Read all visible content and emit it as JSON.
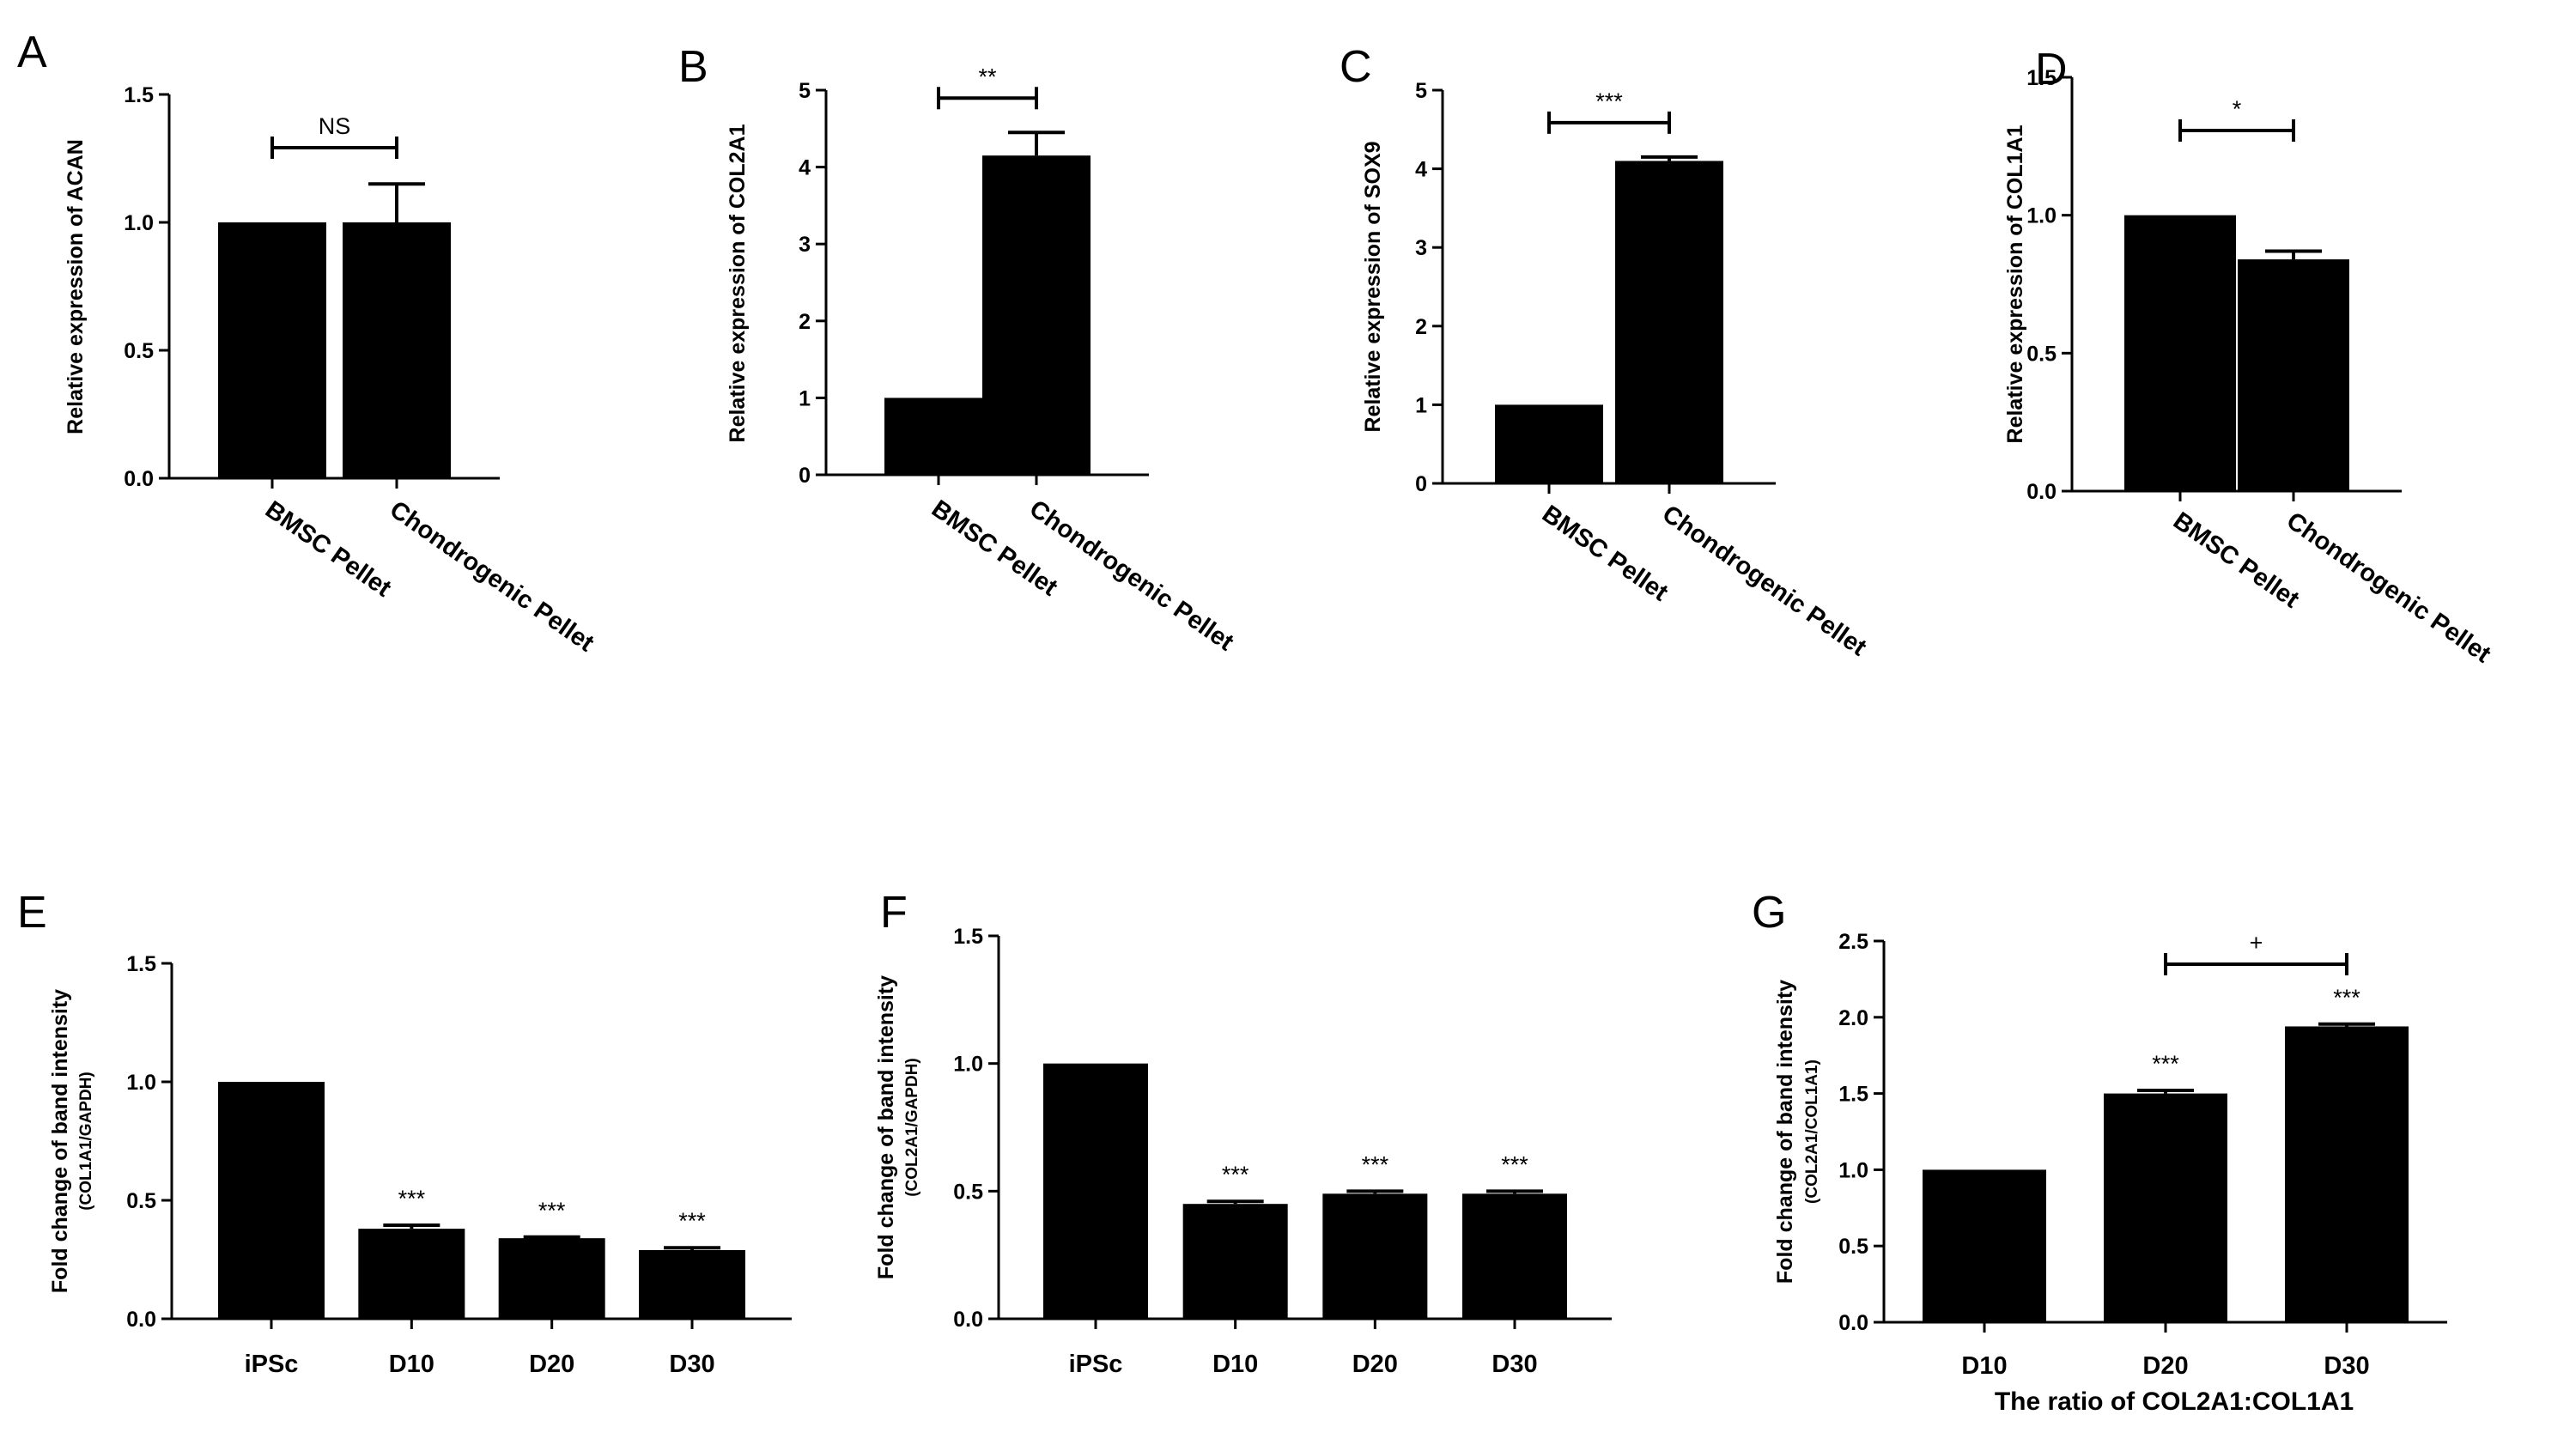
{
  "chart_data": [
    {
      "panel": "A",
      "type": "bar",
      "categories": [
        "BMSC Pellet",
        "Chondrogenic Pellet"
      ],
      "values": [
        1.0,
        1.0
      ],
      "errors": [
        0,
        0.15
      ],
      "ylabel": "Relative expression of ACAN",
      "ylabel2": "",
      "xlabel": "",
      "ylim": [
        0,
        1.5
      ],
      "yticks": [
        "0.0",
        "0.5",
        "1.0",
        "1.5"
      ],
      "bracket": {
        "from": 0,
        "to": 1,
        "label": "NS"
      },
      "stars": [
        "",
        ""
      ],
      "rotated_labels": true,
      "grid": false
    },
    {
      "panel": "B",
      "type": "bar",
      "categories": [
        "BMSC Pellet",
        "Chondrogenic Pellet"
      ],
      "values": [
        1.0,
        4.15
      ],
      "errors": [
        0,
        0.3
      ],
      "ylabel": "Relative expression of COL2A1",
      "ylabel2": "",
      "xlabel": "",
      "ylim": [
        0,
        5
      ],
      "yticks": [
        "0",
        "1",
        "2",
        "3",
        "4",
        "5"
      ],
      "bracket": {
        "from": 0,
        "to": 1,
        "label": "**"
      },
      "stars": [
        "",
        ""
      ],
      "rotated_labels": true,
      "grid": false
    },
    {
      "panel": "C",
      "type": "bar",
      "categories": [
        "BMSC Pellet",
        "Chondrogenic Pellet"
      ],
      "values": [
        1.0,
        4.1
      ],
      "errors": [
        0,
        0.05
      ],
      "ylabel": "Relative expression of SOX9",
      "ylabel2": "",
      "xlabel": "",
      "ylim": [
        0,
        5
      ],
      "yticks": [
        "0",
        "1",
        "2",
        "3",
        "4",
        "5"
      ],
      "bracket": {
        "from": 0,
        "to": 1,
        "label": "***"
      },
      "stars": [
        "",
        ""
      ],
      "rotated_labels": true,
      "grid": false
    },
    {
      "panel": "D",
      "type": "bar",
      "categories": [
        "BMSC Pellet",
        "Chondrogenic Pellet"
      ],
      "values": [
        1.0,
        0.84
      ],
      "errors": [
        0,
        0.03
      ],
      "ylabel": "Relative expression of COL1A1",
      "ylabel2": "",
      "xlabel": "",
      "ylim": [
        0,
        1.5
      ],
      "yticks": [
        "0.0",
        "0.5",
        "1.0",
        "1.5"
      ],
      "bracket": {
        "from": 0,
        "to": 1,
        "label": "*"
      },
      "stars": [
        "",
        ""
      ],
      "rotated_labels": true,
      "grid": false
    },
    {
      "panel": "E",
      "type": "bar",
      "categories": [
        "iPSc",
        "D10",
        "D20",
        "D30"
      ],
      "values": [
        1.0,
        0.38,
        0.34,
        0.29
      ],
      "errors": [
        0,
        0.015,
        0.005,
        0.01
      ],
      "ylabel": "Fold change of band intensity",
      "ylabel2": "(COL1A1/GAPDH)",
      "xlabel": "",
      "ylim": [
        0,
        1.5
      ],
      "yticks": [
        "0.0",
        "0.5",
        "1.0",
        "1.5"
      ],
      "bracket": null,
      "stars": [
        "",
        "***",
        "***",
        "***"
      ],
      "rotated_labels": false,
      "grid": false
    },
    {
      "panel": "F",
      "type": "bar",
      "categories": [
        "iPSc",
        "D10",
        "D20",
        "D30"
      ],
      "values": [
        1.0,
        0.45,
        0.49,
        0.49
      ],
      "errors": [
        0,
        0.01,
        0.01,
        0.01
      ],
      "ylabel": "Fold change of band intensity",
      "ylabel2": "(COL2A1/GAPDH)",
      "xlabel": "",
      "ylim": [
        0,
        1.5
      ],
      "yticks": [
        "0.0",
        "0.5",
        "1.0",
        "1.5"
      ],
      "bracket": null,
      "stars": [
        "",
        "***",
        "***",
        "***"
      ],
      "rotated_labels": false,
      "grid": false
    },
    {
      "panel": "G",
      "type": "bar",
      "categories": [
        "D10",
        "D20",
        "D30"
      ],
      "values": [
        1.0,
        1.5,
        1.94
      ],
      "errors": [
        0,
        0.02,
        0.015
      ],
      "ylabel": "Fold change of band intensity",
      "ylabel2": "(COL2A1/COL1A1)",
      "xlabel": "The ratio of COL2A1:COL1A1",
      "ylim": [
        0,
        2.5
      ],
      "yticks": [
        "0.0",
        "0.5",
        "1.0",
        "1.5",
        "2.0",
        "2.5"
      ],
      "bracket": {
        "from": 1,
        "to": 2,
        "label": "+"
      },
      "stars": [
        "",
        "***",
        "***"
      ],
      "rotated_labels": false,
      "grid": false
    }
  ]
}
